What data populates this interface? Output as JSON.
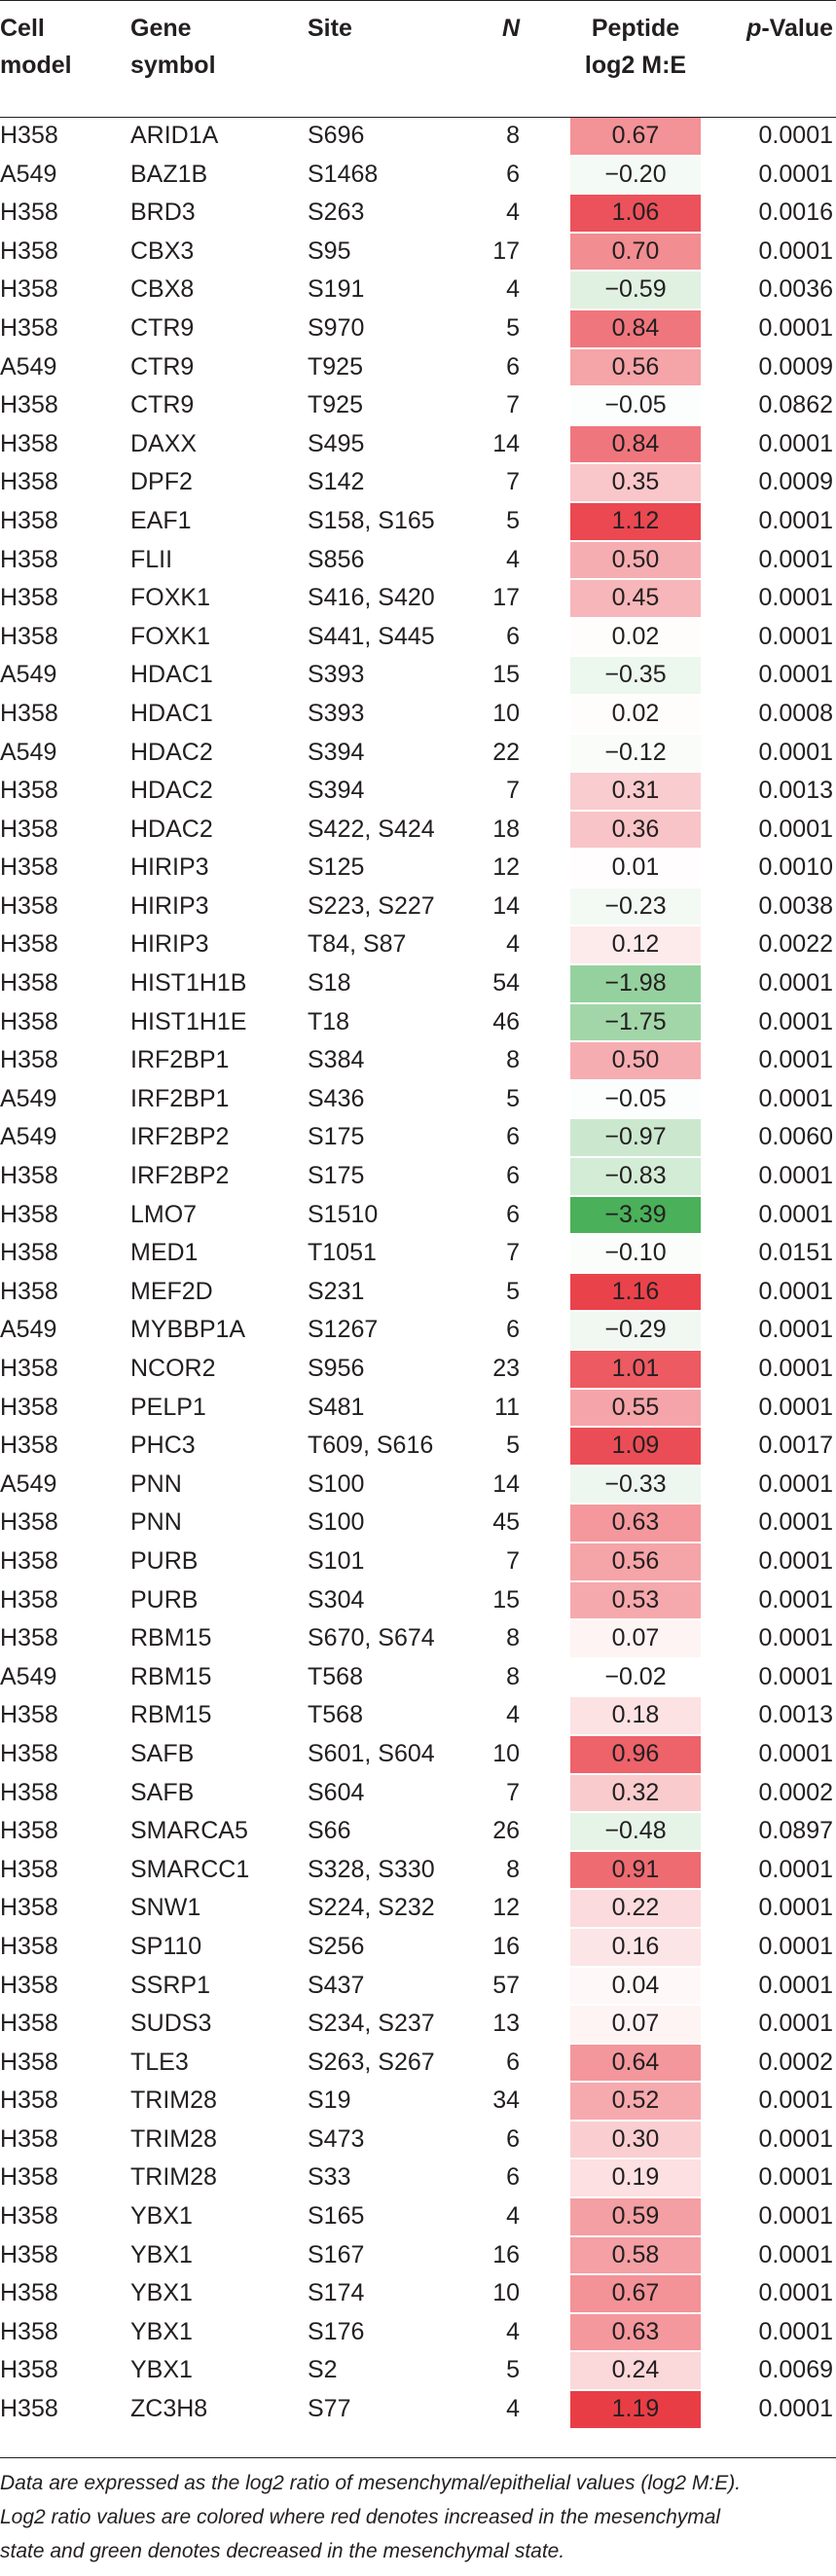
{
  "header": {
    "cell_model": [
      "Cell",
      "model"
    ],
    "gene_symbol": [
      "Gene",
      "symbol"
    ],
    "site": "Site",
    "n": "N",
    "ratio": [
      "Peptide",
      "log2 M:E"
    ],
    "pvalue_italic": "p",
    "pvalue_rest": "-Value"
  },
  "colors": {
    "increase": "#e8313b",
    "decrease": "#3aa94a",
    "neutral": "#ffffff"
  },
  "rows": [
    {
      "model": "H358",
      "gene": "ARID1A",
      "site": "S696",
      "n": "8",
      "ratio": "0.67",
      "p": "0.0001"
    },
    {
      "model": "A549",
      "gene": "BAZ1B",
      "site": "S1468",
      "n": "6",
      "ratio": "−0.20",
      "p": "0.0001"
    },
    {
      "model": "H358",
      "gene": "BRD3",
      "site": "S263",
      "n": "4",
      "ratio": "1.06",
      "p": "0.0016"
    },
    {
      "model": "H358",
      "gene": "CBX3",
      "site": "S95",
      "n": "17",
      "ratio": "0.70",
      "p": "0.0001"
    },
    {
      "model": "H358",
      "gene": "CBX8",
      "site": "S191",
      "n": "4",
      "ratio": "−0.59",
      "p": "0.0036"
    },
    {
      "model": "H358",
      "gene": "CTR9",
      "site": "S970",
      "n": "5",
      "ratio": "0.84",
      "p": "0.0001"
    },
    {
      "model": "A549",
      "gene": "CTR9",
      "site": "T925",
      "n": "6",
      "ratio": "0.56",
      "p": "0.0009"
    },
    {
      "model": "H358",
      "gene": "CTR9",
      "site": "T925",
      "n": "7",
      "ratio": "−0.05",
      "p": "0.0862"
    },
    {
      "model": "H358",
      "gene": "DAXX",
      "site": "S495",
      "n": "14",
      "ratio": "0.84",
      "p": "0.0001"
    },
    {
      "model": "H358",
      "gene": "DPF2",
      "site": "S142",
      "n": "7",
      "ratio": "0.35",
      "p": "0.0009"
    },
    {
      "model": "H358",
      "gene": "EAF1",
      "site": "S158, S165",
      "n": "5",
      "ratio": "1.12",
      "p": "0.0001"
    },
    {
      "model": "H358",
      "gene": "FLII",
      "site": "S856",
      "n": "4",
      "ratio": "0.50",
      "p": "0.0001"
    },
    {
      "model": "H358",
      "gene": "FOXK1",
      "site": "S416, S420",
      "n": "17",
      "ratio": "0.45",
      "p": "0.0001"
    },
    {
      "model": "H358",
      "gene": "FOXK1",
      "site": "S441, S445",
      "n": "6",
      "ratio": "0.02",
      "p": "0.0001"
    },
    {
      "model": "A549",
      "gene": "HDAC1",
      "site": "S393",
      "n": "15",
      "ratio": "−0.35",
      "p": "0.0001"
    },
    {
      "model": "H358",
      "gene": "HDAC1",
      "site": "S393",
      "n": "10",
      "ratio": "0.02",
      "p": "0.0008"
    },
    {
      "model": "A549",
      "gene": "HDAC2",
      "site": "S394",
      "n": "22",
      "ratio": "−0.12",
      "p": "0.0001"
    },
    {
      "model": "H358",
      "gene": "HDAC2",
      "site": "S394",
      "n": "7",
      "ratio": "0.31",
      "p": "0.0013"
    },
    {
      "model": "H358",
      "gene": "HDAC2",
      "site": "S422, S424",
      "n": "18",
      "ratio": "0.36",
      "p": "0.0001"
    },
    {
      "model": "H358",
      "gene": "HIRIP3",
      "site": "S125",
      "n": "12",
      "ratio": "0.01",
      "p": "0.0010"
    },
    {
      "model": "H358",
      "gene": "HIRIP3",
      "site": "S223, S227",
      "n": "14",
      "ratio": "−0.23",
      "p": "0.0038"
    },
    {
      "model": "H358",
      "gene": "HIRIP3",
      "site": "T84, S87",
      "n": "4",
      "ratio": "0.12",
      "p": "0.0022"
    },
    {
      "model": "H358",
      "gene": "HIST1H1B",
      "site": "S18",
      "n": "54",
      "ratio": "−1.98",
      "p": "0.0001"
    },
    {
      "model": "H358",
      "gene": "HIST1H1E",
      "site": "T18",
      "n": "46",
      "ratio": "−1.75",
      "p": "0.0001"
    },
    {
      "model": "H358",
      "gene": "IRF2BP1",
      "site": "S384",
      "n": "8",
      "ratio": "0.50",
      "p": "0.0001"
    },
    {
      "model": "A549",
      "gene": "IRF2BP1",
      "site": "S436",
      "n": "5",
      "ratio": "−0.05",
      "p": "0.0001"
    },
    {
      "model": "A549",
      "gene": "IRF2BP2",
      "site": "S175",
      "n": "6",
      "ratio": "−0.97",
      "p": "0.0060"
    },
    {
      "model": "H358",
      "gene": "IRF2BP2",
      "site": "S175",
      "n": "6",
      "ratio": "−0.83",
      "p": "0.0001"
    },
    {
      "model": "H358",
      "gene": "LMO7",
      "site": "S1510",
      "n": "6",
      "ratio": "−3.39",
      "p": "0.0001"
    },
    {
      "model": "H358",
      "gene": "MED1",
      "site": "T1051",
      "n": "7",
      "ratio": "−0.10",
      "p": "0.0151"
    },
    {
      "model": "H358",
      "gene": "MEF2D",
      "site": "S231",
      "n": "5",
      "ratio": "1.16",
      "p": "0.0001"
    },
    {
      "model": "A549",
      "gene": "MYBBP1A",
      "site": "S1267",
      "n": "6",
      "ratio": "−0.29",
      "p": "0.0001"
    },
    {
      "model": "H358",
      "gene": "NCOR2",
      "site": "S956",
      "n": "23",
      "ratio": "1.01",
      "p": "0.0001"
    },
    {
      "model": "H358",
      "gene": "PELP1",
      "site": "S481",
      "n": "11",
      "ratio": "0.55",
      "p": "0.0001"
    },
    {
      "model": "H358",
      "gene": "PHC3",
      "site": "T609, S616",
      "n": "5",
      "ratio": "1.09",
      "p": "0.0017"
    },
    {
      "model": "A549",
      "gene": "PNN",
      "site": "S100",
      "n": "14",
      "ratio": "−0.33",
      "p": "0.0001"
    },
    {
      "model": "H358",
      "gene": "PNN",
      "site": "S100",
      "n": "45",
      "ratio": "0.63",
      "p": "0.0001"
    },
    {
      "model": "H358",
      "gene": "PURB",
      "site": "S101",
      "n": "7",
      "ratio": "0.56",
      "p": "0.0001"
    },
    {
      "model": "H358",
      "gene": "PURB",
      "site": "S304",
      "n": "15",
      "ratio": "0.53",
      "p": "0.0001"
    },
    {
      "model": "H358",
      "gene": "RBM15",
      "site": "S670, S674",
      "n": "8",
      "ratio": "0.07",
      "p": "0.0001"
    },
    {
      "model": "A549",
      "gene": "RBM15",
      "site": "T568",
      "n": "8",
      "ratio": "−0.02",
      "p": "0.0001"
    },
    {
      "model": "H358",
      "gene": "RBM15",
      "site": "T568",
      "n": "4",
      "ratio": "0.18",
      "p": "0.0013"
    },
    {
      "model": "H358",
      "gene": "SAFB",
      "site": "S601, S604",
      "n": "10",
      "ratio": "0.96",
      "p": "0.0001"
    },
    {
      "model": "H358",
      "gene": "SAFB",
      "site": "S604",
      "n": "7",
      "ratio": "0.32",
      "p": "0.0002"
    },
    {
      "model": "H358",
      "gene": "SMARCA5",
      "site": "S66",
      "n": "26",
      "ratio": "−0.48",
      "p": "0.0897"
    },
    {
      "model": "H358",
      "gene": "SMARCC1",
      "site": "S328, S330",
      "n": "8",
      "ratio": "0.91",
      "p": "0.0001"
    },
    {
      "model": "H358",
      "gene": "SNW1",
      "site": "S224, S232",
      "n": "12",
      "ratio": "0.22",
      "p": "0.0001"
    },
    {
      "model": "H358",
      "gene": "SP110",
      "site": "S256",
      "n": "16",
      "ratio": "0.16",
      "p": "0.0001"
    },
    {
      "model": "H358",
      "gene": "SSRP1",
      "site": "S437",
      "n": "57",
      "ratio": "0.04",
      "p": "0.0001"
    },
    {
      "model": "H358",
      "gene": "SUDS3",
      "site": "S234, S237",
      "n": "13",
      "ratio": "0.07",
      "p": "0.0001"
    },
    {
      "model": "H358",
      "gene": "TLE3",
      "site": "S263, S267",
      "n": "6",
      "ratio": "0.64",
      "p": "0.0002"
    },
    {
      "model": "H358",
      "gene": "TRIM28",
      "site": "S19",
      "n": "34",
      "ratio": "0.52",
      "p": "0.0001"
    },
    {
      "model": "H358",
      "gene": "TRIM28",
      "site": "S473",
      "n": "6",
      "ratio": "0.30",
      "p": "0.0001"
    },
    {
      "model": "H358",
      "gene": "TRIM28",
      "site": "S33",
      "n": "6",
      "ratio": "0.19",
      "p": "0.0001"
    },
    {
      "model": "H358",
      "gene": "YBX1",
      "site": "S165",
      "n": "4",
      "ratio": "0.59",
      "p": "0.0001"
    },
    {
      "model": "H358",
      "gene": "YBX1",
      "site": "S167",
      "n": "16",
      "ratio": "0.58",
      "p": "0.0001"
    },
    {
      "model": "H358",
      "gene": "YBX1",
      "site": "S174",
      "n": "10",
      "ratio": "0.67",
      "p": "0.0001"
    },
    {
      "model": "H358",
      "gene": "YBX1",
      "site": "S176",
      "n": "4",
      "ratio": "0.63",
      "p": "0.0001"
    },
    {
      "model": "H358",
      "gene": "YBX1",
      "site": "S2",
      "n": "5",
      "ratio": "0.24",
      "p": "0.0069"
    },
    {
      "model": "H358",
      "gene": "ZC3H8",
      "site": "S77",
      "n": "4",
      "ratio": "1.19",
      "p": "0.0001"
    }
  ],
  "footnote": {
    "line1": "Data are expressed as the log2 ratio of mesenchymal/epithelial values (log2 M:E).",
    "line2": "Log2 ratio values are colored where red denotes increased in the mesenchymal",
    "line3": "state and green denotes decreased in the mesenchymal state."
  }
}
